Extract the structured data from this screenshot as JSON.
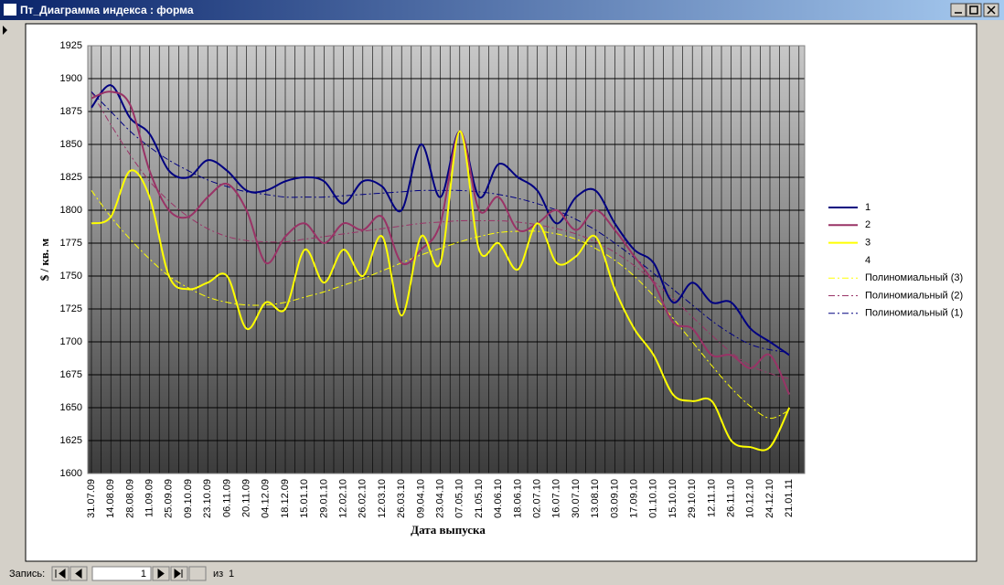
{
  "window": {
    "title": "Пт_Диаграмма индекса : форма",
    "record_label": "Запись:",
    "record_number": "1",
    "of_label": "из",
    "record_total": "1"
  },
  "chart_data": {
    "type": "line",
    "xlabel": "Дата выпуска",
    "ylabel": "$ / кв. м",
    "categories": [
      "31.07.09",
      "14.08.09",
      "28.08.09",
      "11.09.09",
      "25.09.09",
      "09.10.09",
      "23.10.09",
      "06.11.09",
      "20.11.09",
      "04.12.09",
      "18.12.09",
      "15.01.10",
      "29.01.10",
      "12.02.10",
      "26.02.10",
      "12.03.10",
      "26.03.10",
      "09.04.10",
      "23.04.10",
      "07.05.10",
      "21.05.10",
      "04.06.10",
      "18.06.10",
      "02.07.10",
      "16.07.10",
      "30.07.10",
      "13.08.10",
      "03.09.10",
      "17.09.10",
      "01.10.10",
      "15.10.10",
      "29.10.10",
      "12.11.10",
      "26.11.10",
      "10.12.10",
      "24.12.10",
      "21.01.11"
    ],
    "series": [
      {
        "name": "1",
        "color": "#000080",
        "width": 2,
        "dash": false,
        "values": [
          1878,
          1895,
          1870,
          1858,
          1830,
          1825,
          1838,
          1830,
          1815,
          1815,
          1822,
          1825,
          1822,
          1805,
          1822,
          1818,
          1800,
          1850,
          1810,
          1860,
          1810,
          1835,
          1825,
          1815,
          1790,
          1810,
          1815,
          1790,
          1770,
          1760,
          1730,
          1745,
          1730,
          1730,
          1710,
          1700,
          1690
        ]
      },
      {
        "name": "2",
        "color": "#993366",
        "width": 2,
        "dash": false,
        "values": [
          1885,
          1890,
          1880,
          1830,
          1800,
          1795,
          1810,
          1820,
          1800,
          1760,
          1780,
          1790,
          1775,
          1790,
          1785,
          1795,
          1760,
          1770,
          1790,
          1860,
          1800,
          1810,
          1785,
          1790,
          1800,
          1785,
          1800,
          1785,
          1765,
          1745,
          1715,
          1710,
          1690,
          1690,
          1680,
          1690,
          1660
        ]
      },
      {
        "name": "3",
        "color": "#ffff00",
        "width": 2,
        "dash": false,
        "values": [
          1790,
          1795,
          1830,
          1810,
          1750,
          1740,
          1745,
          1750,
          1710,
          1730,
          1725,
          1770,
          1745,
          1770,
          1750,
          1780,
          1720,
          1780,
          1760,
          1860,
          1770,
          1775,
          1755,
          1790,
          1760,
          1765,
          1780,
          1740,
          1710,
          1690,
          1660,
          1655,
          1655,
          1625,
          1620,
          1620,
          1650
        ]
      },
      {
        "name": "4",
        "color": "#ffffff",
        "width": 0,
        "dash": false,
        "values": [
          null,
          null,
          null,
          null,
          null,
          null,
          null,
          null,
          null,
          null,
          null,
          null,
          null,
          null,
          null,
          null,
          null,
          null,
          null,
          null,
          null,
          null,
          null,
          null,
          null,
          null,
          null,
          null,
          null,
          null,
          null,
          null,
          null,
          null,
          null,
          null,
          null
        ]
      },
      {
        "name": "Полиномиальный (3)",
        "color": "#ffff00",
        "width": 1,
        "dash": true,
        "values": [
          1815,
          1795,
          1778,
          1763,
          1750,
          1741,
          1734,
          1730,
          1728,
          1728,
          1730,
          1734,
          1738,
          1743,
          1748,
          1754,
          1760,
          1766,
          1771,
          1776,
          1780,
          1783,
          1784,
          1784,
          1782,
          1778,
          1771,
          1762,
          1750,
          1735,
          1718,
          1700,
          1682,
          1665,
          1651,
          1642,
          1648
        ]
      },
      {
        "name": "Полиномиальный (2)",
        "color": "#993366",
        "width": 1,
        "dash": true,
        "values": [
          1890,
          1865,
          1842,
          1822,
          1807,
          1795,
          1786,
          1780,
          1777,
          1776,
          1776,
          1778,
          1780,
          1782,
          1784,
          1786,
          1788,
          1790,
          1791,
          1792,
          1792,
          1792,
          1791,
          1789,
          1786,
          1782,
          1776,
          1768,
          1758,
          1746,
          1733,
          1719,
          1705,
          1692,
          1682,
          1676,
          1672
        ]
      },
      {
        "name": "Полиномиальный (1)",
        "color": "#000080",
        "width": 1,
        "dash": true,
        "values": [
          1890,
          1875,
          1860,
          1848,
          1838,
          1830,
          1823,
          1818,
          1814,
          1812,
          1810,
          1810,
          1810,
          1811,
          1812,
          1813,
          1814,
          1815,
          1815,
          1815,
          1814,
          1812,
          1809,
          1805,
          1800,
          1793,
          1785,
          1775,
          1764,
          1752,
          1740,
          1728,
          1716,
          1706,
          1698,
          1694,
          1692
        ]
      }
    ],
    "ylim": [
      1600,
      1925
    ],
    "yticks": [
      1600,
      1625,
      1650,
      1675,
      1700,
      1725,
      1750,
      1775,
      1800,
      1825,
      1850,
      1875,
      1900,
      1925
    ],
    "grid": true,
    "legend": "right"
  }
}
